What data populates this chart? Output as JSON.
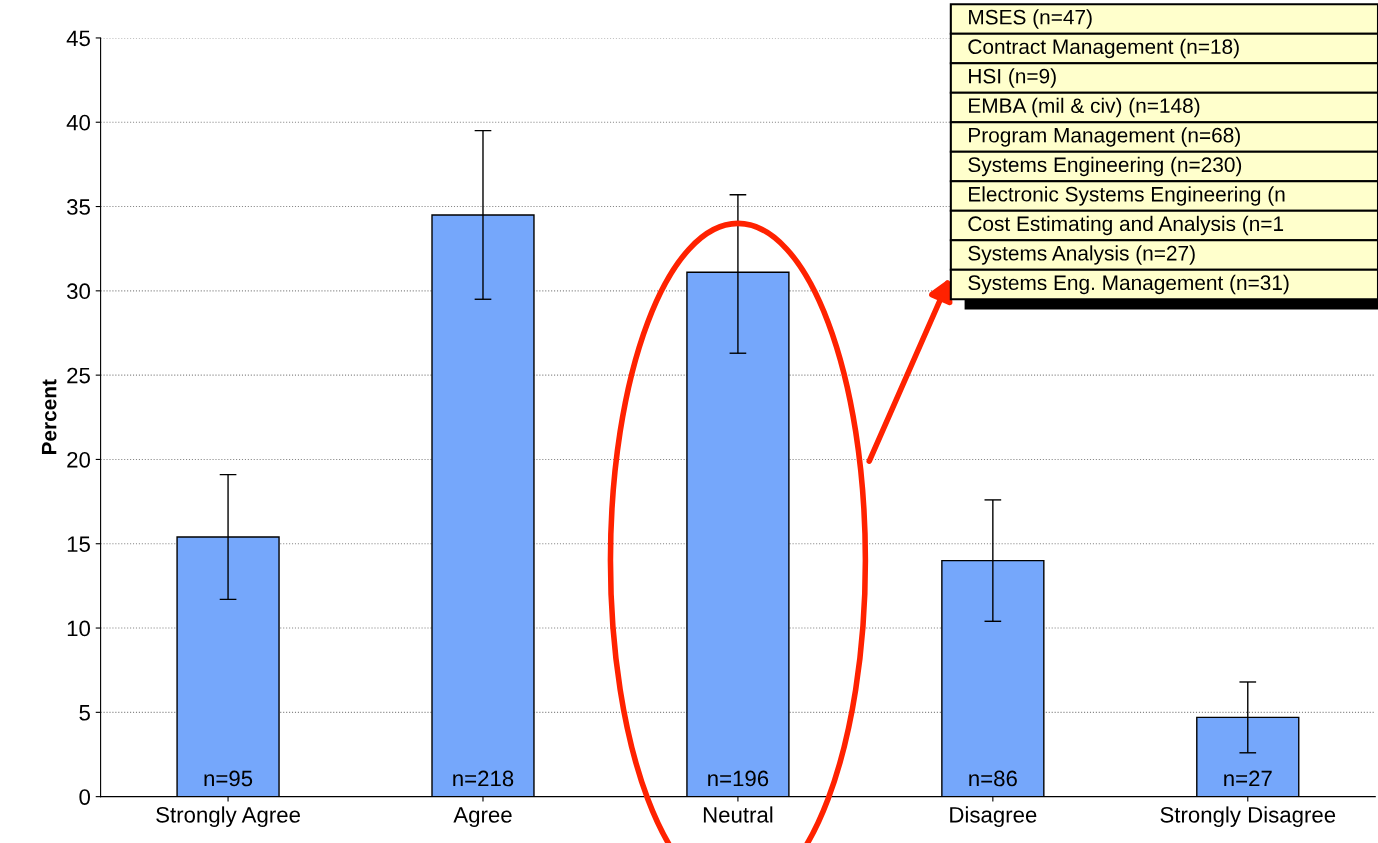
{
  "chart_data": {
    "type": "bar",
    "ylabel": "Percent",
    "categories": [
      "Strongly Agree",
      "Agree",
      "Neutral",
      "Disagree",
      "Strongly Disagree"
    ],
    "values": [
      15.4,
      34.5,
      31.1,
      14.0,
      4.7
    ],
    "errors": [
      [
        11.7,
        19.1
      ],
      [
        29.5,
        39.5
      ],
      [
        26.3,
        35.7
      ],
      [
        10.4,
        17.6
      ],
      [
        2.6,
        6.8
      ]
    ],
    "color": "#75a7fb",
    "ylim": [
      0,
      45
    ],
    "yticks": [
      0,
      5,
      10,
      15,
      20,
      25,
      30,
      35,
      40,
      45
    ],
    "grid": "y",
    "annotations": [
      "n=95",
      "n=218",
      "n=196",
      "n=86",
      "n=27",
      "MSES (n=47)",
      "Contract Management (n=18)",
      "HSI (n=9)",
      "EMBA (mil & civ) (n=148)",
      "Program Management (n=68)",
      "Systems Engineering (n=230)",
      "Electronic Systems Engineering (n",
      "Cost Estimating and Analysis (n=1",
      "Systems Analysis (n=27)",
      "Systems Eng. Management (n=31)"
    ]
  }
}
